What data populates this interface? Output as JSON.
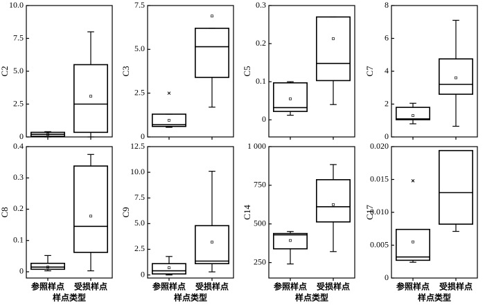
{
  "chart_data": [
    {
      "type": "box",
      "ylabel": "C2",
      "categories": [
        null,
        null
      ],
      "ylim": [
        0,
        10
      ],
      "yticks": [
        0,
        2.5,
        {
          "value": 5,
          "label": "5.0"
        },
        7.5,
        {
          "value": 10,
          "label": "10.0"
        }
      ],
      "boxes": [
        {
          "min": 0,
          "q1": 0.05,
          "median": 0.2,
          "q3": 0.35,
          "max": 0.4,
          "mean": 0.2
        },
        {
          "min": 0,
          "q1": 0.35,
          "median": 2.5,
          "q3": 5.5,
          "max": 8.0,
          "mean": 3.1
        }
      ]
    },
    {
      "type": "box",
      "ylabel": "C3",
      "categories": [
        null,
        null
      ],
      "ylim": [
        0,
        7.5
      ],
      "yticks": [
        0,
        2.5,
        {
          "value": 5,
          "label": "5.0"
        },
        7.5
      ],
      "boxes": [
        {
          "min": 0.55,
          "q1": 0.6,
          "median": 0.7,
          "q3": 1.3,
          "max": 1.3,
          "mean": 0.95,
          "outliers": [
            2.5
          ]
        },
        {
          "min": 1.7,
          "q1": 3.4,
          "median": 5.15,
          "q3": 6.2,
          "max": 6.2,
          "mean": 6.9
        }
      ]
    },
    {
      "type": "box",
      "ylabel": "C5",
      "categories": [
        null,
        null
      ],
      "ylim": [
        -0.045,
        0.3
      ],
      "yticks": [
        0,
        0.1,
        0.2,
        0.3
      ],
      "boxes": [
        {
          "min": 0.012,
          "q1": 0.022,
          "median": 0.032,
          "q3": 0.097,
          "max": 0.1,
          "mean": 0.055
        },
        {
          "min": 0.04,
          "q1": 0.103,
          "median": 0.148,
          "q3": 0.27,
          "max": 0.27,
          "mean": 0.213
        }
      ]
    },
    {
      "type": "box",
      "ylabel": "C7",
      "categories": [
        null,
        null
      ],
      "ylim": [
        0,
        8
      ],
      "yticks": [
        0,
        2,
        4,
        6,
        8
      ],
      "boxes": [
        {
          "min": 0.8,
          "q1": 1.05,
          "median": 1.1,
          "q3": 1.8,
          "max": 2.05,
          "mean": 1.3
        },
        {
          "min": 0.65,
          "q1": 2.6,
          "median": 3.2,
          "q3": 4.75,
          "max": 7.1,
          "mean": 3.6
        }
      ]
    },
    {
      "type": "box",
      "ylabel": "C8",
      "categories": [
        "参照样点",
        "受损样点"
      ],
      "xlabel": "样点类型",
      "ylim": [
        -0.02,
        0.4
      ],
      "yticks": [
        0,
        0.1,
        0.2,
        0.3,
        0.4
      ],
      "boxes": [
        {
          "min": 0.003,
          "q1": 0.008,
          "median": 0.015,
          "q3": 0.027,
          "max": 0.052,
          "mean": 0.015
        },
        {
          "min": 0.003,
          "q1": 0.062,
          "median": 0.145,
          "q3": 0.338,
          "max": 0.375,
          "mean": 0.178
        }
      ]
    },
    {
      "type": "box",
      "ylabel": "C9",
      "categories": [
        "参照样点",
        "受损样点"
      ],
      "xlabel": "样点类型",
      "ylim": [
        -0.3,
        12.5
      ],
      "yticks": [
        0,
        2.5,
        {
          "value": 5,
          "label": "5.0"
        },
        7.5,
        {
          "value": 10,
          "label": "10.0"
        },
        12.5
      ],
      "boxes": [
        {
          "min": 0,
          "q1": 0.1,
          "median": 0.4,
          "q3": 1.1,
          "max": 1.8,
          "mean": 0.7
        },
        {
          "min": 0.3,
          "q1": 1.1,
          "median": 1.35,
          "q3": 4.8,
          "max": 10.1,
          "mean": 3.2
        }
      ]
    },
    {
      "type": "box",
      "ylabel": "C14",
      "categories": [
        "参照样点",
        "受损样点"
      ],
      "xlabel": "样点类型",
      "ylim": [
        150,
        1000
      ],
      "yticks": [
        250,
        500,
        750,
        {
          "value": 1000,
          "label": "1 000"
        }
      ],
      "boxes": [
        {
          "min": 241,
          "q1": 339,
          "median": 429,
          "q3": 438,
          "max": 451,
          "mean": 393
        },
        {
          "min": 321,
          "q1": 513,
          "median": 611,
          "q3": 786,
          "max": 884,
          "mean": 625
        }
      ]
    },
    {
      "type": "box",
      "ylabel": "C17",
      "categories": [
        "参照样点",
        "受损样点"
      ],
      "xlabel": "样点类型",
      "ylim": [
        0,
        0.02
      ],
      "yticks": [
        0,
        0.005,
        {
          "value": 0.01,
          "label": "0.010"
        },
        0.015,
        {
          "value": 0.02,
          "label": "0.020"
        }
      ],
      "boxes": [
        {
          "min": 0.0024,
          "q1": 0.0027,
          "median": 0.0032,
          "q3": 0.0074,
          "max": 0.0074,
          "mean": 0.0055,
          "outliers": [
            0.0148
          ]
        },
        {
          "min": 0.0071,
          "q1": 0.0082,
          "median": 0.013,
          "q3": 0.0194,
          "max": 0.0194
        }
      ]
    }
  ]
}
